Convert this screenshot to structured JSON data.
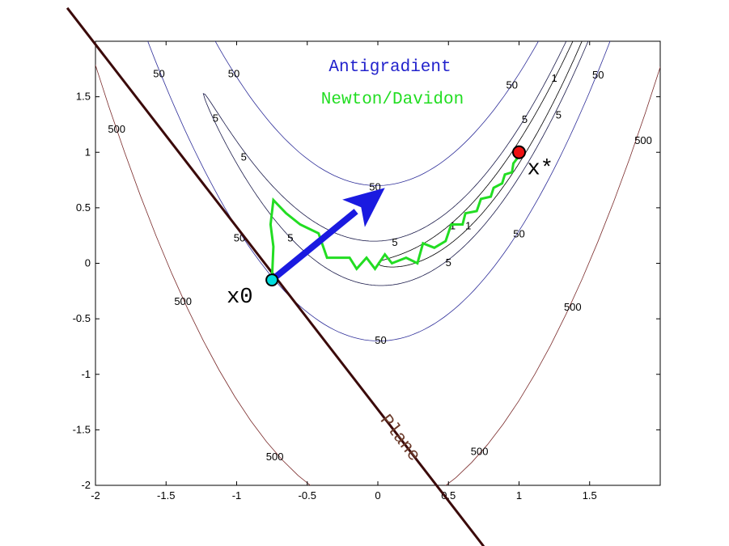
{
  "chart_data": {
    "type": "line",
    "title": "",
    "xlabel": "",
    "ylabel": "",
    "xlim": [
      -2,
      2
    ],
    "ylim": [
      -2,
      2
    ],
    "x_ticks": [
      -2,
      -1.5,
      -1,
      -0.5,
      0,
      0.5,
      1,
      1.5
    ],
    "x_tick_labels": [
      "-2",
      "-1.5",
      "-1",
      "-0.5",
      "0",
      "0.5",
      "1",
      "1.5"
    ],
    "y_ticks": [
      -2,
      -1.5,
      -1,
      -0.5,
      0,
      0.5,
      1,
      1.5
    ],
    "y_tick_labels": [
      "-2",
      "-1.5",
      "-1",
      "-0.5",
      "0",
      "0.5",
      "1",
      "1.5"
    ],
    "grid": false,
    "legend": {
      "placement": "top-center",
      "entries": [
        {
          "label": "Antigradient",
          "color": "#2222cc"
        },
        {
          "label": "Newton/Davidon",
          "color": "#22dd22"
        }
      ]
    },
    "contours": {
      "function": "(1-x)^2 + 100*(y-x^2)^2",
      "levels": [
        {
          "value": 1,
          "label": "1",
          "color": "#000000"
        },
        {
          "value": 5,
          "label": "5",
          "color": "#1a1a4a"
        },
        {
          "value": 50,
          "label": "50",
          "color": "#2e2e99"
        },
        {
          "value": 500,
          "label": "500",
          "color": "#7a2a2a"
        }
      ],
      "labels": [
        {
          "text": "50",
          "x": -1.55,
          "y": 1.7
        },
        {
          "text": "50",
          "x": -1.02,
          "y": 1.7
        },
        {
          "text": "500",
          "x": -1.85,
          "y": 1.2
        },
        {
          "text": "5",
          "x": -1.15,
          "y": 1.3
        },
        {
          "text": "5",
          "x": -0.95,
          "y": 0.95
        },
        {
          "text": "50",
          "x": -0.02,
          "y": 0.68
        },
        {
          "text": "50",
          "x": -0.98,
          "y": 0.22
        },
        {
          "text": "5",
          "x": -0.62,
          "y": 0.22
        },
        {
          "text": "5",
          "x": 0.12,
          "y": 0.18
        },
        {
          "text": "5",
          "x": 0.5,
          "y": 0.0
        },
        {
          "text": "1",
          "x": 0.64,
          "y": 0.33
        },
        {
          "text": "1",
          "x": 0.53,
          "y": 0.33
        },
        {
          "text": "1",
          "x": 1.25,
          "y": 1.66
        },
        {
          "text": "5",
          "x": 1.28,
          "y": 1.33
        },
        {
          "text": "5",
          "x": 1.04,
          "y": 1.29
        },
        {
          "text": "50",
          "x": 0.95,
          "y": 1.6
        },
        {
          "text": "50",
          "x": 1.56,
          "y": 1.69
        },
        {
          "text": "500",
          "x": 1.88,
          "y": 1.1
        },
        {
          "text": "50",
          "x": 1.0,
          "y": 0.26
        },
        {
          "text": "500",
          "x": 1.38,
          "y": -0.4
        },
        {
          "text": "50",
          "x": 0.02,
          "y": -0.7
        },
        {
          "text": "500",
          "x": -1.38,
          "y": -0.35
        },
        {
          "text": "500",
          "x": -0.73,
          "y": -1.75
        },
        {
          "text": "500",
          "x": 0.72,
          "y": -1.7
        }
      ]
    },
    "series": [
      {
        "name": "Newton/Davidon",
        "color": "#22dd22",
        "x": [
          -0.75,
          -0.74,
          -0.76,
          -0.74,
          -0.65,
          -0.55,
          -0.42,
          -0.36,
          -0.2,
          -0.15,
          -0.08,
          -0.02,
          0.05,
          0.1,
          0.2,
          0.28,
          0.32,
          0.4,
          0.48,
          0.52,
          0.6,
          0.62,
          0.7,
          0.73,
          0.8,
          0.82,
          0.88,
          0.9,
          0.95,
          0.96,
          0.99,
          1.0
        ],
        "y": [
          -0.15,
          0.15,
          0.35,
          0.57,
          0.45,
          0.35,
          0.27,
          0.05,
          0.05,
          -0.05,
          0.05,
          -0.05,
          0.08,
          0.0,
          0.05,
          0.0,
          0.18,
          0.14,
          0.2,
          0.35,
          0.35,
          0.45,
          0.47,
          0.58,
          0.6,
          0.68,
          0.72,
          0.8,
          0.82,
          0.9,
          0.95,
          1.0
        ]
      }
    ],
    "annotations": {
      "antigradient_arrow": {
        "from": [
          -0.75,
          -0.15
        ],
        "to": [
          0.05,
          0.68
        ],
        "color": "#1a1ae0"
      },
      "plane_line": {
        "from": [
          -2.2,
          2.3
        ],
        "to": [
          0.75,
          -2.55
        ],
        "color": "#3b0a0a",
        "label": "Plane"
      },
      "start_point": {
        "x": -0.75,
        "y": -0.15,
        "label": "x0",
        "color": "#00dddd"
      },
      "optimum_point": {
        "x": 1.0,
        "y": 1.0,
        "label": "x*",
        "color": "#ee1111"
      }
    }
  }
}
